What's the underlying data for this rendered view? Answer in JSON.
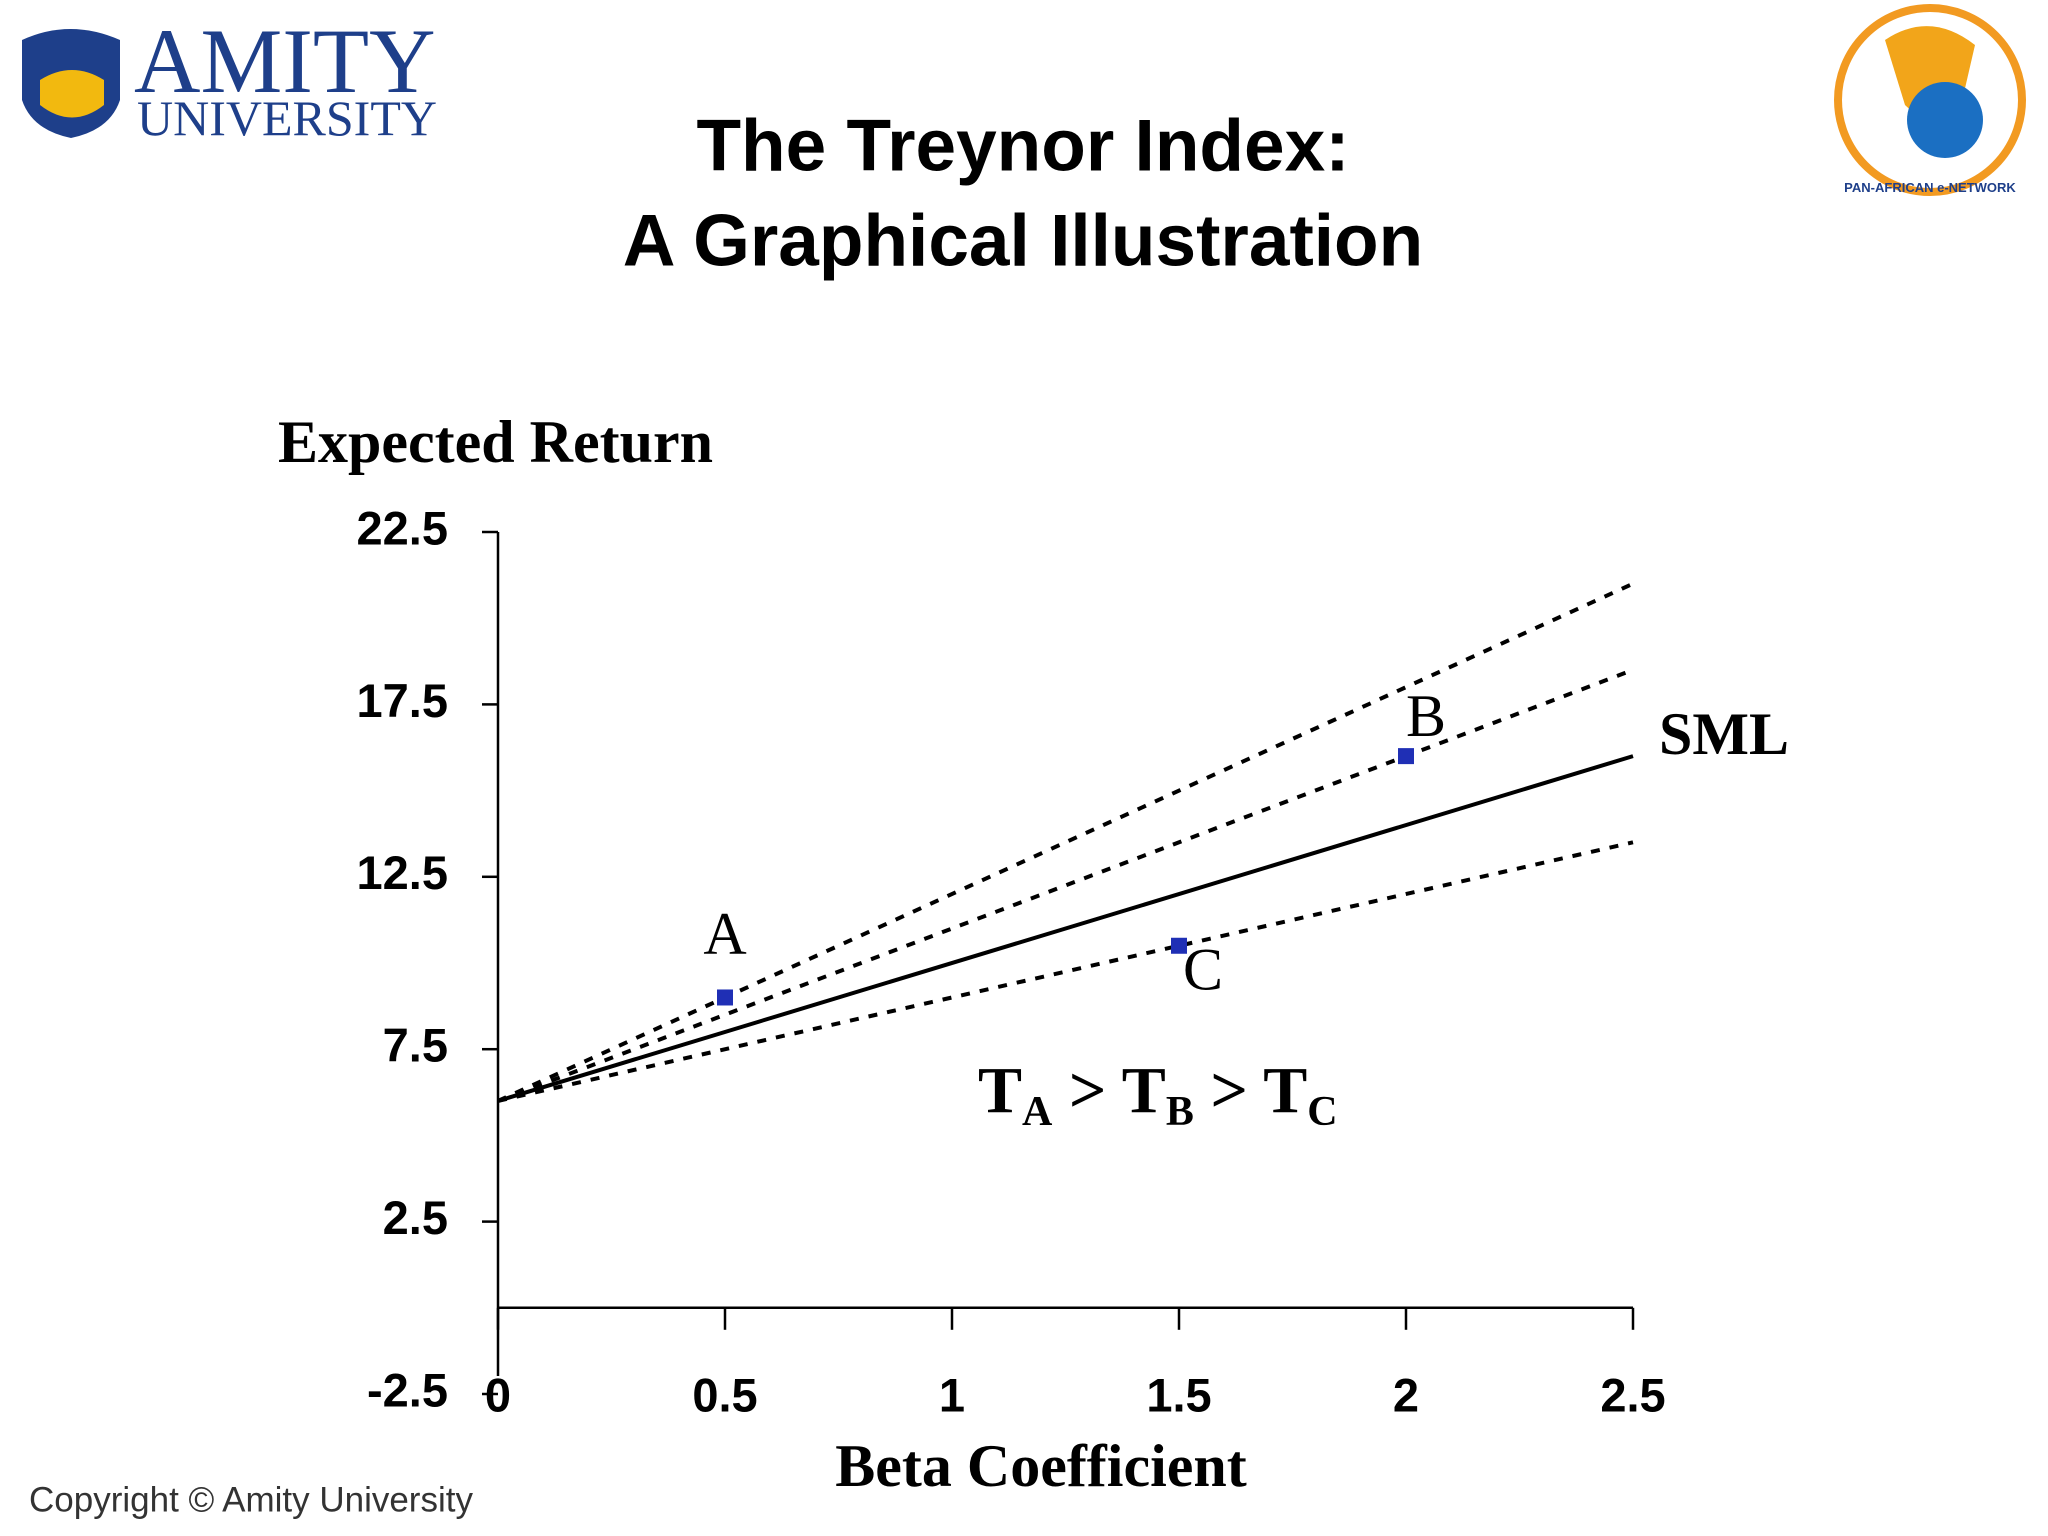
{
  "header": {
    "logo_name": "AMITY",
    "logo_sub": "UNIVERSITY",
    "partner_logo": "PAN-AFRICAN e-NETWORK"
  },
  "footer": "Copyright © Amity University",
  "chart_data": {
    "type": "line",
    "title": [
      "The Treynor Index:",
      "A Graphical Illustration"
    ],
    "y_label": "Expected Return",
    "x_label": "Beta Coefficient",
    "xlim": [
      0,
      2.5
    ],
    "ylim": [
      -2.5,
      22.5
    ],
    "xticks": [
      0,
      0.5,
      1,
      1.5,
      2,
      2.5
    ],
    "yticks": [
      -2.5,
      2.5,
      7.5,
      12.5,
      17.5,
      22.5
    ],
    "series": [
      {
        "name": "SML",
        "color": "#000000",
        "dash": false,
        "x": [
          0,
          2.5
        ],
        "values": [
          6,
          16
        ]
      },
      {
        "color": "#000000",
        "dash": true,
        "x": [
          0,
          2.5
        ],
        "values": [
          6,
          21
        ]
      },
      {
        "color": "#000000",
        "dash": true,
        "x": [
          0,
          2.5
        ],
        "values": [
          6,
          18.5
        ]
      },
      {
        "color": "#000000",
        "dash": true,
        "x": [
          0,
          2.5
        ],
        "values": [
          6,
          13.5
        ]
      }
    ],
    "points": {
      "labels": [
        "A",
        "B",
        "C"
      ],
      "x": [
        0.5,
        2,
        1.5
      ],
      "values": [
        9,
        16,
        10.5
      ],
      "color": "#1f2fb5"
    },
    "annotation": [
      "T",
      "A",
      " > T",
      "B",
      " > T",
      "C"
    ]
  }
}
